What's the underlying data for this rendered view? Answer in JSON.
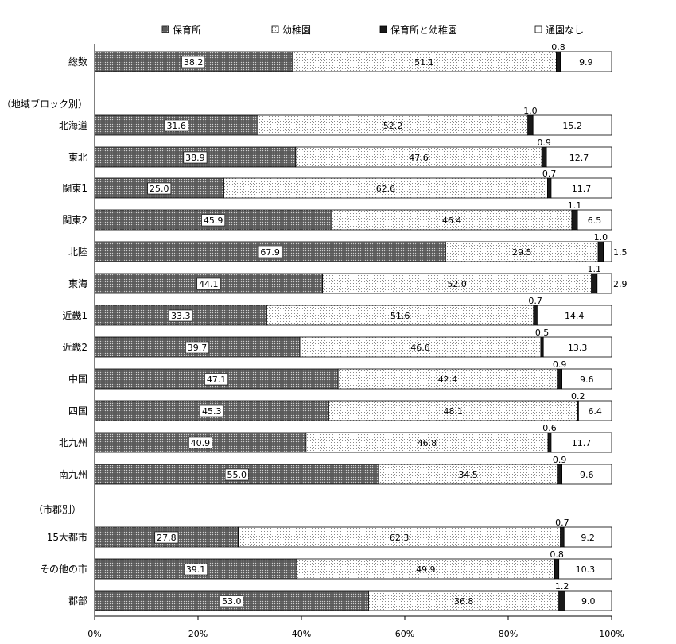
{
  "chart_data": {
    "type": "bar",
    "orientation": "horizontal",
    "stacked": "percent",
    "legend": {
      "placement": "top",
      "entries": [
        "保育所",
        "幼稚園",
        "保育所と幼稚園",
        "通園なし"
      ]
    },
    "section_labels": [
      "（地域ブロック別）",
      "（市郡別）"
    ],
    "categories": [
      "総数",
      "北海道",
      "東北",
      "関東1",
      "関東2",
      "北陸",
      "東海",
      "近畿1",
      "近畿2",
      "中国",
      "四国",
      "北九州",
      "南九州",
      "15大都市",
      "その他の市",
      "郡部"
    ],
    "series": [
      {
        "name": "保育所",
        "values": [
          38.2,
          31.6,
          38.9,
          25.0,
          45.9,
          67.9,
          44.1,
          33.3,
          39.7,
          47.1,
          45.3,
          40.9,
          55.0,
          27.8,
          39.1,
          53.0
        ]
      },
      {
        "name": "幼稚園",
        "values": [
          51.1,
          52.2,
          47.6,
          62.6,
          46.4,
          29.5,
          52.0,
          51.6,
          46.6,
          42.4,
          48.1,
          46.8,
          34.5,
          62.3,
          49.9,
          36.8
        ]
      },
      {
        "name": "保育所と幼稚園",
        "values": [
          0.8,
          1.0,
          0.9,
          0.7,
          1.1,
          1.0,
          1.1,
          0.7,
          0.5,
          0.9,
          0.2,
          0.6,
          0.9,
          0.7,
          0.8,
          1.2
        ]
      },
      {
        "name": "通園なし",
        "values": [
          9.9,
          15.2,
          12.7,
          11.7,
          6.5,
          1.5,
          2.9,
          14.4,
          13.3,
          9.6,
          6.4,
          11.7,
          9.6,
          9.2,
          10.3,
          9.0
        ]
      }
    ],
    "value_labels": [
      [
        "38.2",
        "51.1",
        "0.8",
        "9.9"
      ],
      [
        "31.6",
        "52.2",
        "1.0",
        "15.2"
      ],
      [
        "38.9",
        "47.6",
        "0.9",
        "12.7"
      ],
      [
        "25.0",
        "62.6",
        "0.7",
        "11.7"
      ],
      [
        "45.9",
        "46.4",
        "1.1",
        "6.5"
      ],
      [
        "67.9",
        "29.5",
        "1.0",
        "1.5"
      ],
      [
        "44.1",
        "52.0",
        "1.1",
        "2.9"
      ],
      [
        "33.3",
        "51.6",
        "0.7",
        "14.4"
      ],
      [
        "39.7",
        "46.6",
        "0.5",
        "13.3"
      ],
      [
        "47.1",
        "42.4",
        "0.9",
        "9.6"
      ],
      [
        "45.3",
        "48.1",
        "0.2",
        "6.4"
      ],
      [
        "40.9",
        "46.8",
        "0.6",
        "11.7"
      ],
      [
        "55.0",
        "34.5",
        "0.9",
        "9.6"
      ],
      [
        "27.8",
        "62.3",
        "0.7",
        "9.2"
      ],
      [
        "39.1",
        "49.9",
        "0.8",
        "10.3"
      ],
      [
        "53.0",
        "36.8",
        "1.2",
        "9.0"
      ]
    ],
    "x_ticks": [
      "0%",
      "20%",
      "40%",
      "60%",
      "80%",
      "100%"
    ],
    "xlim": [
      0,
      100
    ],
    "grid": false,
    "colors": {
      "保育所": "#555555",
      "幼稚園": "#f2f2f2",
      "保育所と幼稚園": "#1a1a1a",
      "通園なし": "#ffffff"
    }
  }
}
